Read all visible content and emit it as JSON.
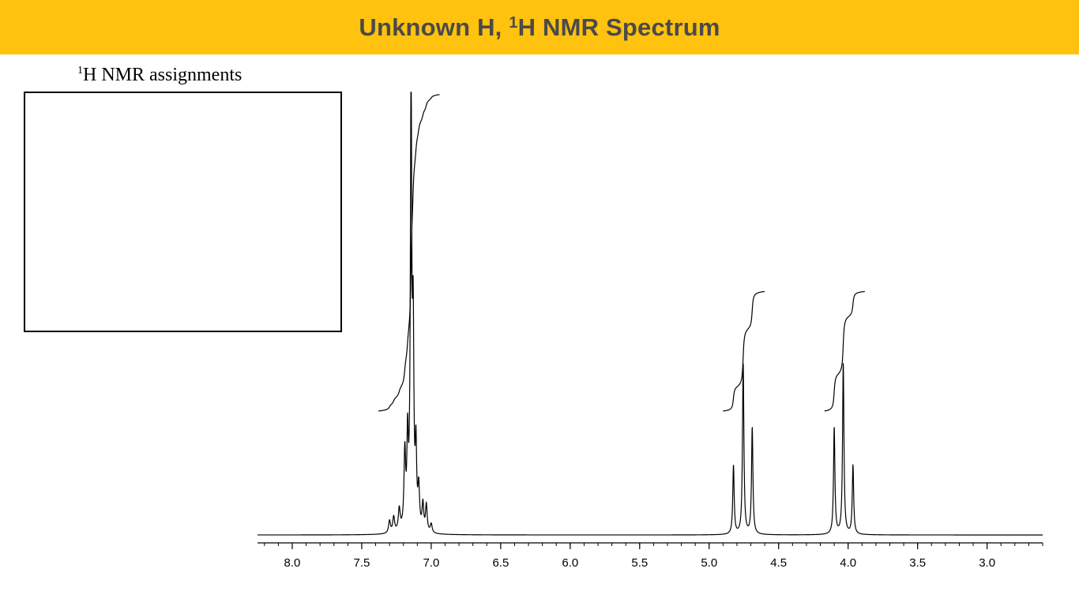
{
  "header": {
    "title_main": "Unknown H, ",
    "title_sup": "1",
    "title_tail": "H NMR Spectrum",
    "background": "#FFC20E",
    "text_color": "#4A4A4A"
  },
  "assignments": {
    "label_sup": "1",
    "label_text": "H NMR assignments",
    "content": ""
  },
  "chart_data": {
    "type": "line",
    "title": "",
    "xlabel": "",
    "ylabel": "",
    "x_axis": {
      "reversed": true,
      "xlim": [
        8.25,
        2.6
      ],
      "tick_labels": [
        "8.0",
        "7.5",
        "7.0",
        "6.5",
        "6.0",
        "5.5",
        "5.0",
        "4.5",
        "4.0",
        "3.5",
        "3.0"
      ],
      "major_ticks": [
        8.0,
        7.5,
        7.0,
        6.5,
        6.0,
        5.5,
        5.0,
        4.5,
        4.0,
        3.5,
        3.0
      ],
      "minor_tick_step": 0.1
    },
    "ylim": [
      0,
      1.0
    ],
    "grid": false,
    "peaks": [
      {
        "shift": 7.3,
        "height": 0.028,
        "width": 0.008
      },
      {
        "shift": 7.27,
        "height": 0.035,
        "width": 0.008
      },
      {
        "shift": 7.23,
        "height": 0.05,
        "width": 0.008
      },
      {
        "shift": 7.19,
        "height": 0.17,
        "width": 0.007
      },
      {
        "shift": 7.17,
        "height": 0.19,
        "width": 0.006
      },
      {
        "shift": 7.145,
        "height": 1.0,
        "width": 0.006
      },
      {
        "shift": 7.13,
        "height": 0.42,
        "width": 0.006
      },
      {
        "shift": 7.11,
        "height": 0.17,
        "width": 0.006
      },
      {
        "shift": 7.09,
        "height": 0.09,
        "width": 0.007
      },
      {
        "shift": 7.06,
        "height": 0.06,
        "width": 0.007
      },
      {
        "shift": 7.035,
        "height": 0.06,
        "width": 0.007
      },
      {
        "shift": 7.0,
        "height": 0.02,
        "width": 0.008
      },
      {
        "shift": 4.825,
        "height": 0.155,
        "width": 0.006
      },
      {
        "shift": 4.755,
        "height": 0.385,
        "width": 0.006
      },
      {
        "shift": 4.69,
        "height": 0.24,
        "width": 0.006
      },
      {
        "shift": 4.1,
        "height": 0.24,
        "width": 0.006
      },
      {
        "shift": 4.035,
        "height": 0.385,
        "width": 0.006
      },
      {
        "shift": 3.965,
        "height": 0.155,
        "width": 0.006
      }
    ],
    "integrals": [
      {
        "from": 7.38,
        "to": 6.94,
        "base": 0.28,
        "top": 0.995,
        "relative_height": 0.715
      },
      {
        "from": 4.9,
        "to": 4.6,
        "base": 0.28,
        "top": 0.55,
        "relative_height": 0.27
      },
      {
        "from": 4.17,
        "to": 3.88,
        "base": 0.28,
        "top": 0.55,
        "relative_height": 0.27
      }
    ]
  }
}
